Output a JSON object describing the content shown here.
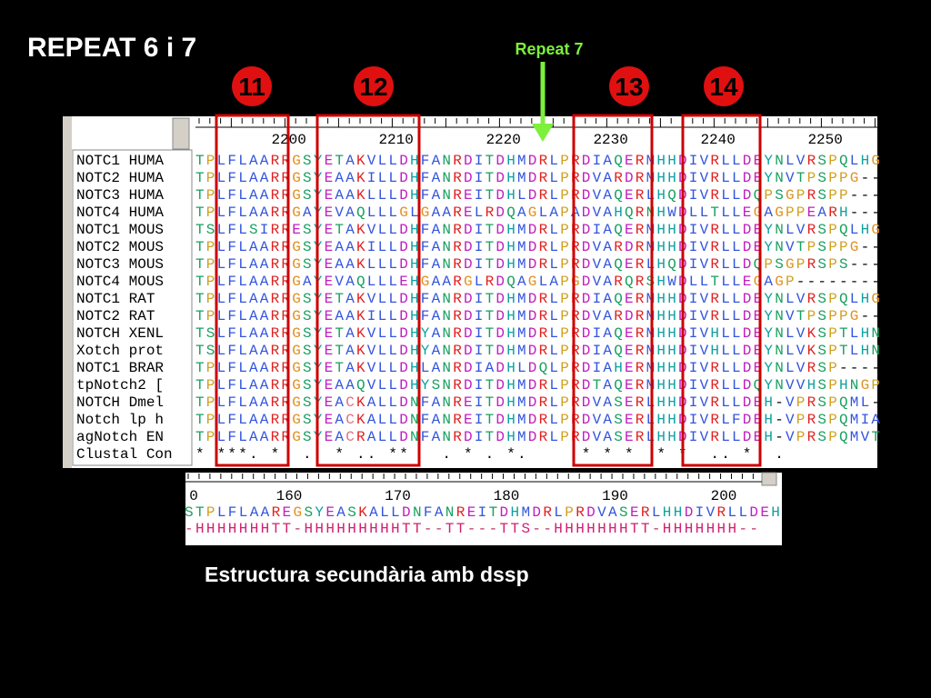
{
  "title": "REPEAT 6 i 7",
  "arrow_label": "Repeat 7",
  "markers": [
    "11",
    "12",
    "13",
    "14"
  ],
  "caption": "Estructura secundària amb dssp",
  "alignment": {
    "ruler": [
      "2200",
      "2210",
      "2220",
      "2230",
      "2240",
      "2250"
    ],
    "rows": [
      {
        "name": "NOTC1 HUMA",
        "sequence": "TPLFLAARRGSYETAKVLLDHFANRDITDHMDRLPRDIAQERMHHDIVRLLDEYNLVRSPQLHG"
      },
      {
        "name": "NOTC2 HUMA",
        "sequence": "TPLFLAARRGSYEAAKILLDHFANRDITDHMDRLPRDVARDRMHHDIVRLLDEYNVTPSPPG--"
      },
      {
        "name": "NOTC3 HUMA",
        "sequence": "TPLFLAARRGSYEAAKLLLDHFANREITDHLDRLPRDVAQERLHQDIVRLLDQPSGPRSPP---"
      },
      {
        "name": "NOTC4 HUMA",
        "sequence": "TPLFLAARRGAYEVAQLLLGLGAARELRDQAGLAPADVAHQRNHWDLLTLLEGAGPPEARH---"
      },
      {
        "name": "NOTC1 MOUS",
        "sequence": "TSLFLSIRRESYETAKVLLDHFANRDITDHMDRLPRDIAQERMHHDIVRLLDEYNLVRSPQLHG"
      },
      {
        "name": "NOTC2 MOUS",
        "sequence": "TPLFLAARRGSYEAAKILLDHFANRDITDHMDRLPRDVARDRMHHDIVRLLDEYNVTPSPPG--"
      },
      {
        "name": "NOTC3 MOUS",
        "sequence": "TPLFLAARRGSYEAAKLLLDHFANRDITDHMDRLPRDVAQERLHQDIVRLLDQPSGPRSPS---"
      },
      {
        "name": "NOTC4 MOUS",
        "sequence": "TPLFLAARRGAYEVAQLLLEHGAARGLRDQAGLAPGDVARQRSHWDLLTLLEGAGP--------"
      },
      {
        "name": "NOTC1 RAT",
        "sequence": "TPLFLAARRGSYETAKVLLDHFANRDITDHMDRLPRDIAQERMHHDIVRLLDEYNLVRSPQLHG"
      },
      {
        "name": "NOTC2 RAT",
        "sequence": "TPLFLAARRGSYEAAKILLDHFANRDITDHMDRLPRDVARDRMHHDIVRLLDEYNVTPSPPG--"
      },
      {
        "name": "NOTCH XENL",
        "sequence": "TSLFLAARRGSYETAKVLLDHYANRDITDHMDRLPRDIAQERMHHDIVHLLDEYNLVKSPTLHN"
      },
      {
        "name": "Xotch prot",
        "sequence": "TSLFLAARRGSYETAKVLLDHYANRDITDHMDRLPRDIAQERMHHDIVHLLDEYNLVKSPTLHN"
      },
      {
        "name": "NOTC1 BRAR",
        "sequence": "TPLFLAARRGSYETAKVLLDHLANRDIADHLDQLPRDIAHERMHHDIVRLLDEYNLVRSP----"
      },
      {
        "name": "tpNotch2 [",
        "sequence": "TPLFLAARRGSYEAAQVLLDHYSNRDITDHMDRLPRDTAQERMHHDIVRLLDQYNVVHSPHNGP"
      },
      {
        "name": "NOTCH Dmel",
        "sequence": "TPLFLAARRGSYEACKALLDNFANREITDHMDRLPRDVASERLHHDIVRLLDEH-VPRSPQML-"
      },
      {
        "name": "Notch lp h",
        "sequence": "TPLFLAARRGSYEACKALLDNFANREITDHMDRLPRDVASERLHHDIVRLFDEH-VPRSPQMIA"
      },
      {
        "name": "agNotch EN",
        "sequence": "TPLFLAARRGSYEACRALLDNFANRDITDHMDRLPRDVASERLHHDIVRLLDEH-VPRSPQMVT"
      },
      {
        "name": "Clustal Con",
        "sequence": "* ***. *  .  * .. **   . * . *.     * * *  * *  .. *  ."
      }
    ]
  },
  "structure": {
    "ruler": [
      "0",
      "160",
      "170",
      "180",
      "190",
      "200"
    ],
    "sequence": "STPLFLAAREGSYEASKALLDNFANREITDHMDRLPRDVASERLHHDIVRLLDEH",
    "dssp": "-HHHHHHHTT-HHHHHHHHHTT--TT---TTS--HHHHHHHTT-HHHHHHH--"
  }
}
